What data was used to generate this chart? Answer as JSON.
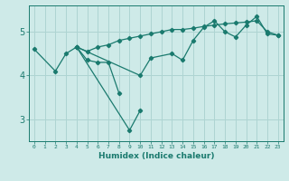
{
  "xlabel": "Humidex (Indice chaleur)",
  "ylabel": "",
  "background_color": "#ceeae8",
  "grid_color": "#aed4d2",
  "line_color": "#1a7a6e",
  "xlim": [
    -0.5,
    23.5
  ],
  "ylim": [
    2.5,
    5.6
  ],
  "yticks": [
    3,
    4,
    5
  ],
  "xticks": [
    0,
    1,
    2,
    3,
    4,
    5,
    6,
    7,
    8,
    9,
    10,
    11,
    12,
    13,
    14,
    15,
    16,
    17,
    18,
    19,
    20,
    21,
    22,
    23
  ],
  "series": [
    {
      "x": [
        0,
        2,
        3,
        4,
        5,
        6,
        7,
        8
      ],
      "y": [
        4.6,
        4.1,
        4.5,
        4.65,
        4.35,
        4.3,
        4.3,
        3.6
      ]
    },
    {
      "x": [
        4,
        10,
        11,
        13,
        14,
        15,
        16,
        17,
        18,
        19,
        20,
        21,
        22,
        23
      ],
      "y": [
        4.65,
        4.0,
        4.4,
        4.5,
        4.35,
        4.8,
        5.1,
        5.25,
        5.0,
        4.88,
        5.15,
        5.35,
        4.95,
        4.92
      ]
    },
    {
      "x": [
        4,
        9,
        10
      ],
      "y": [
        4.65,
        2.75,
        3.2
      ]
    },
    {
      "x": [
        4,
        5,
        6,
        7,
        8,
        9,
        10,
        11,
        12,
        13,
        14,
        15,
        16,
        17,
        18,
        19,
        20,
        21,
        22,
        23
      ],
      "y": [
        4.65,
        4.55,
        4.65,
        4.7,
        4.8,
        4.85,
        4.9,
        4.95,
        5.0,
        5.05,
        5.05,
        5.08,
        5.12,
        5.15,
        5.18,
        5.2,
        5.22,
        5.25,
        5.0,
        4.92
      ]
    }
  ]
}
